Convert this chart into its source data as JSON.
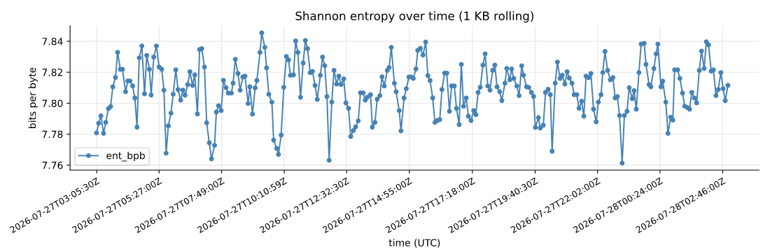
{
  "chart_data": {
    "type": "line",
    "title": "Shannon entropy over time (1 KB rolling)",
    "xlabel": "time (UTC)",
    "ylabel": "bits per byte",
    "x": [
      "2026-07-27T03:05",
      "2026-07-27T03:10",
      "2026-07-27T03:15",
      "2026-07-27T03:21",
      "2026-07-27T03:26",
      "2026-07-27T03:32",
      "2026-07-27T03:37",
      "2026-07-27T03:42",
      "2026-07-27T03:48",
      "2026-07-27T03:53",
      "2026-07-27T03:59",
      "2026-07-27T04:04",
      "2026-07-27T04:11",
      "2026-07-27T04:16",
      "2026-07-27T04:21",
      "2026-07-27T04:27",
      "2026-07-27T04:32",
      "2026-07-27T04:37",
      "2026-07-27T04:42",
      "2026-07-27T04:48",
      "2026-07-27T04:54",
      "2026-07-27T04:59",
      "2026-07-27T05:05",
      "2026-07-27T05:09",
      "2026-07-27T05:15",
      "2026-07-27T05:21",
      "2026-07-27T05:27",
      "2026-07-27T05:33",
      "2026-07-27T05:38",
      "2026-07-27T05:43",
      "2026-07-27T05:48",
      "2026-07-27T05:54",
      "2026-07-27T05:59",
      "2026-07-27T06:05",
      "2026-07-27T06:10",
      "2026-07-27T06:16",
      "2026-07-27T06:21",
      "2026-07-27T06:26",
      "2026-07-27T06:32",
      "2026-07-27T06:37",
      "2026-07-27T06:43",
      "2026-07-27T06:48",
      "2026-07-27T06:54",
      "2026-07-27T06:59",
      "2026-07-27T07:04",
      "2026-07-27T07:10",
      "2026-07-27T07:15",
      "2026-07-27T07:21",
      "2026-07-27T07:26",
      "2026-07-27T07:33",
      "2026-07-27T07:37",
      "2026-07-27T07:42",
      "2026-07-27T07:48",
      "2026-07-27T07:53",
      "2026-07-27T07:59",
      "2026-07-27T08:04",
      "2026-07-27T08:11",
      "2026-07-27T08:15",
      "2026-07-27T08:20",
      "2026-07-27T08:26",
      "2026-07-27T08:31",
      "2026-07-27T08:37",
      "2026-07-27T08:42",
      "2026-07-27T08:49",
      "2026-07-27T08:53",
      "2026-07-27T08:59",
      "2026-07-27T09:05",
      "2026-07-27T09:09",
      "2026-07-27T09:16",
      "2026-07-27T09:20",
      "2026-07-27T09:27",
      "2026-07-27T09:31",
      "2026-07-27T09:36",
      "2026-07-27T09:43",
      "2026-07-27T09:47",
      "2026-07-27T09:54",
      "2026-07-27T09:58",
      "2026-07-27T10:04",
      "2026-07-27T10:10",
      "2026-07-27T10:16",
      "2026-07-27T10:21",
      "2026-07-27T10:25",
      "2026-07-27T10:32",
      "2026-07-27T10:37",
      "2026-07-27T10:42",
      "2026-07-27T10:48",
      "2026-07-27T10:54",
      "2026-07-27T10:59",
      "2026-07-27T11:04",
      "2026-07-27T11:10",
      "2026-07-27T11:15",
      "2026-07-27T11:21",
      "2026-07-27T11:26",
      "2026-07-27T11:33",
      "2026-07-27T11:38",
      "2026-07-27T11:43",
      "2026-07-27T11:48",
      "2026-07-27T11:53",
      "2026-07-27T11:59",
      "2026-07-27T12:04",
      "2026-07-27T12:10",
      "2026-07-27T12:15",
      "2026-07-27T12:20",
      "2026-07-27T12:26",
      "2026-07-27T12:31",
      "2026-07-27T12:37",
      "2026-07-27T12:42",
      "2026-07-27T12:48",
      "2026-07-27T12:53",
      "2026-07-27T12:59",
      "2026-07-27T13:04",
      "2026-07-27T13:10",
      "2026-07-27T13:15",
      "2026-07-27T13:20",
      "2026-07-27T13:27",
      "2026-07-27T13:31",
      "2026-07-27T13:37",
      "2026-07-27T13:42",
      "2026-07-27T13:48",
      "2026-07-27T13:53",
      "2026-07-27T13:58",
      "2026-07-27T14:05",
      "2026-07-27T14:09",
      "2026-07-27T14:14",
      "2026-07-27T14:21",
      "2026-07-27T14:25",
      "2026-07-27T14:32",
      "2026-07-27T14:36",
      "2026-07-27T14:43",
      "2026-07-27T14:48",
      "2026-07-27T14:54",
      "2026-07-27T14:59",
      "2026-07-27T15:04",
      "2026-07-27T15:10",
      "2026-07-27T15:14",
      "2026-07-27T15:20",
      "2026-07-27T15:26",
      "2026-07-27T15:32",
      "2026-07-27T15:37",
      "2026-07-27T15:42",
      "2026-07-27T15:48",
      "2026-07-27T15:53",
      "2026-07-27T15:59",
      "2026-07-27T16:04",
      "2026-07-27T16:09",
      "2026-07-27T16:15",
      "2026-07-27T16:20",
      "2026-07-27T16:26",
      "2026-07-27T16:31",
      "2026-07-27T16:37",
      "2026-07-27T16:42",
      "2026-07-27T16:48",
      "2026-07-27T16:53",
      "2026-07-27T16:58",
      "2026-07-27T17:04",
      "2026-07-27T17:09",
      "2026-07-27T17:15",
      "2026-07-27T17:21",
      "2026-07-27T17:26",
      "2026-07-27T17:31",
      "2026-07-27T17:36",
      "2026-07-27T17:42",
      "2026-07-27T17:47",
      "2026-07-27T17:53",
      "2026-07-27T17:58",
      "2026-07-27T18:04",
      "2026-07-27T18:09",
      "2026-07-27T18:14",
      "2026-07-27T18:20",
      "2026-07-27T18:25",
      "2026-07-27T18:32",
      "2026-07-27T18:36",
      "2026-07-27T18:43",
      "2026-07-27T18:47",
      "2026-07-27T18:52",
      "2026-07-27T18:59",
      "2026-07-27T19:04",
      "2026-07-27T19:10",
      "2026-07-27T19:14",
      "2026-07-27T19:21",
      "2026-07-27T19:26",
      "2026-07-27T19:32",
      "2026-07-27T19:37",
      "2026-07-27T19:41",
      "2026-07-27T19:48",
      "2026-07-27T19:52",
      "2026-07-27T19:59",
      "2026-07-27T20:04",
      "2026-07-27T20:10",
      "2026-07-27T20:15",
      "2026-07-27T20:19",
      "2026-07-27T20:26",
      "2026-07-27T20:31",
      "2026-07-27T20:37",
      "2026-07-27T20:42",
      "2026-07-27T20:48",
      "2026-07-27T20:53",
      "2026-07-27T20:58",
      "2026-07-27T21:04",
      "2026-07-27T21:09",
      "2026-07-27T21:15",
      "2026-07-27T21:20",
      "2026-07-27T21:26",
      "2026-07-27T21:31",
      "2026-07-27T21:36",
      "2026-07-27T21:42",
      "2026-07-27T21:47",
      "2026-07-27T21:53",
      "2026-07-27T21:59",
      "2026-07-27T22:04",
      "2026-07-27T22:10",
      "2026-07-27T22:14",
      "2026-07-27T22:19",
      "2026-07-27T22:25",
      "2026-07-27T22:31",
      "2026-07-27T22:37",
      "2026-07-27T22:42",
      "2026-07-27T22:47",
      "2026-07-27T22:52",
      "2026-07-27T22:58",
      "2026-07-27T23:03",
      "2026-07-27T23:09",
      "2026-07-27T23:14",
      "2026-07-27T23:21",
      "2026-07-27T23:25",
      "2026-07-27T23:30",
      "2026-07-27T23:36",
      "2026-07-27T23:41",
      "2026-07-27T23:48",
      "2026-07-27T23:52",
      "2026-07-27T23:59",
      "2026-07-28T00:03",
      "2026-07-28T00:10",
      "2026-07-28T00:15",
      "2026-07-28T00:19",
      "2026-07-28T00:26",
      "2026-07-28T00:30",
      "2026-07-28T00:37",
      "2026-07-28T00:42",
      "2026-07-28T00:48",
      "2026-07-28T00:53",
      "2026-07-28T00:57",
      "2026-07-28T01:04",
      "2026-07-28T01:09",
      "2026-07-28T01:15",
      "2026-07-28T01:20",
      "2026-07-28T01:26",
      "2026-07-28T01:31",
      "2026-07-28T01:36",
      "2026-07-28T01:42",
      "2026-07-28T01:47",
      "2026-07-28T01:53",
      "2026-07-28T01:58",
      "2026-07-28T02:04",
      "2026-07-28T02:09",
      "2026-07-28T02:14",
      "2026-07-28T02:20",
      "2026-07-28T02:25",
      "2026-07-28T02:31",
      "2026-07-28T02:36",
      "2026-07-28T02:42",
      "2026-07-28T02:47",
      "2026-07-28T02:52",
      "2026-07-28T02:58"
    ],
    "series": [
      {
        "name": "ent_bpb",
        "color": "#4682b4",
        "values": [
          7.7808,
          7.7871,
          7.7918,
          7.7805,
          7.7876,
          7.7965,
          7.7978,
          7.8106,
          7.8166,
          7.8329,
          7.8219,
          7.8219,
          7.8074,
          7.8144,
          7.8144,
          7.8112,
          7.8034,
          7.7845,
          7.8293,
          7.837,
          7.8061,
          7.8308,
          7.8219,
          7.8053,
          7.8298,
          7.837,
          7.8234,
          7.8219,
          7.8084,
          7.7677,
          7.7854,
          7.7936,
          7.8058,
          7.8216,
          7.8088,
          7.802,
          7.8085,
          7.8052,
          7.8121,
          7.8203,
          7.8115,
          7.8183,
          7.7931,
          7.8347,
          7.8353,
          7.8234,
          7.7873,
          7.7744,
          7.764,
          7.7728,
          7.7943,
          7.7984,
          7.7952,
          7.8148,
          7.81,
          7.8065,
          7.8065,
          7.813,
          7.8284,
          7.8192,
          7.8084,
          7.8169,
          7.8175,
          7.7998,
          7.8106,
          7.793,
          7.8099,
          7.8147,
          7.8328,
          7.8454,
          7.8361,
          7.8228,
          7.8058,
          7.8007,
          7.7761,
          7.7708,
          7.7669,
          7.7794,
          7.8103,
          7.8302,
          7.8279,
          7.818,
          7.8183,
          7.8402,
          7.8329,
          7.8038,
          7.826,
          7.8405,
          7.8352,
          7.8197,
          7.8206,
          7.8115,
          7.8025,
          7.818,
          7.8298,
          7.8243,
          7.8043,
          7.7631,
          7.8008,
          7.8212,
          7.8124,
          7.8175,
          7.8121,
          7.8157,
          7.8002,
          7.7967,
          7.7785,
          7.7824,
          7.7847,
          7.7886,
          7.8067,
          7.8067,
          7.802,
          7.804,
          7.8055,
          7.7845,
          7.7876,
          7.8026,
          7.8049,
          7.8171,
          7.8111,
          7.8212,
          7.823,
          7.8361,
          7.8129,
          7.8074,
          7.7952,
          7.7821,
          7.8034,
          7.8094,
          7.8169,
          7.8169,
          7.816,
          7.8221,
          7.8341,
          7.8355,
          7.8311,
          7.8395,
          7.8178,
          7.8147,
          7.8034,
          7.7876,
          7.7889,
          7.7894,
          7.8088,
          7.8194,
          7.8194,
          7.7948,
          7.8112,
          7.8112,
          7.7967,
          7.7862,
          7.8251,
          7.798,
          7.8034,
          7.7916,
          7.7888,
          7.7952,
          7.7926,
          7.807,
          7.8103,
          7.8246,
          7.8319,
          7.8111,
          7.8084,
          7.8212,
          7.8246,
          7.8106,
          7.8074,
          7.8017,
          7.813,
          7.8225,
          7.8151,
          7.8221,
          7.816,
          7.8111,
          7.8049,
          7.8242,
          7.8181,
          7.8106,
          7.8102,
          7.807,
          7.8044,
          7.7844,
          7.7907,
          7.7839,
          7.7857,
          7.807,
          7.809,
          7.8055,
          7.769,
          7.813,
          7.8266,
          7.816,
          7.8181,
          7.8124,
          7.8203,
          7.8162,
          7.813,
          7.8055,
          7.8055,
          7.7967,
          7.8013,
          7.7916,
          7.8175,
          7.8165,
          7.8192,
          7.7961,
          7.788,
          7.8007,
          7.8055,
          7.8198,
          7.8334,
          7.8212,
          7.8151,
          7.8166,
          7.8034,
          7.8043,
          7.7921,
          7.7613,
          7.7921,
          7.7948,
          7.81,
          7.8029,
          7.8081,
          7.7961,
          7.8198,
          7.8382,
          7.8386,
          7.8251,
          7.812,
          7.8106,
          7.8225,
          7.8319,
          7.8382,
          7.8106,
          7.8142,
          7.8007,
          7.7805,
          7.7909,
          7.7891,
          7.8216,
          7.8216,
          7.816,
          7.8065,
          7.7981,
          7.7972,
          7.7961,
          7.807,
          7.8034,
          7.8002,
          7.8212,
          7.8337,
          7.8225,
          7.8397,
          7.8377,
          7.8207,
          7.8216,
          7.8049,
          7.8088,
          7.8198,
          7.8094,
          7.8017,
          7.8115
        ]
      }
    ],
    "xlim": [
      "2026-07-27T02:05",
      "2026-07-28T04:09"
    ],
    "xticks": [
      {
        "value": "2026-07-27T03:05:30",
        "label": "2026-07-27T03:05:30Z"
      },
      {
        "value": "2026-07-27T05:27:00",
        "label": "2026-07-27T05:27:00Z"
      },
      {
        "value": "2026-07-27T07:49:00",
        "label": "2026-07-27T07:49:00Z"
      },
      {
        "value": "2026-07-27T10:10:59",
        "label": "2026-07-27T10:10:59Z"
      },
      {
        "value": "2026-07-27T12:32:30",
        "label": "2026-07-27T12:32:30Z"
      },
      {
        "value": "2026-07-27T14:55:00",
        "label": "2026-07-27T14:55:00Z"
      },
      {
        "value": "2026-07-27T17:18:00",
        "label": "2026-07-27T17:18:00Z"
      },
      {
        "value": "2026-07-27T19:40:30",
        "label": "2026-07-27T19:40:30Z"
      },
      {
        "value": "2026-07-27T22:02:00",
        "label": "2026-07-27T22:02:00Z"
      },
      {
        "value": "2026-07-28T00:24:00",
        "label": "2026-07-28T00:24:00Z"
      },
      {
        "value": "2026-07-28T02:46:00",
        "label": "2026-07-28T02:46:00Z"
      }
    ],
    "ylim": [
      7.7568,
      7.8499
    ],
    "yticks": [
      7.76,
      7.78,
      {
        "value": 7.8,
        "label": "7.80"
      },
      7.82,
      7.84
    ],
    "grid": true,
    "legend": "bottom left",
    "marker": "circle",
    "line_style": "solid"
  }
}
